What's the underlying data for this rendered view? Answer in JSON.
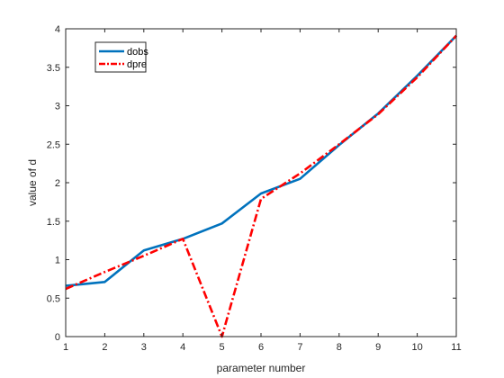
{
  "chart_data": {
    "type": "line",
    "title": "",
    "xlabel": "parameter number",
    "ylabel": "value of d",
    "xlim": [
      1,
      11
    ],
    "ylim": [
      0,
      4
    ],
    "xticks": [
      1,
      2,
      3,
      4,
      5,
      6,
      7,
      8,
      9,
      10,
      11
    ],
    "yticks": [
      0,
      0.5,
      1,
      1.5,
      2,
      2.5,
      3,
      3.5,
      4
    ],
    "ytick_labels": [
      "0",
      "0.5",
      "1",
      "1.5",
      "2",
      "2.5",
      "3",
      "3.5",
      "4"
    ],
    "grid": false,
    "legend_position": "top-left",
    "x": [
      1,
      2,
      3,
      4,
      5,
      6,
      7,
      8,
      9,
      10,
      11
    ],
    "series": [
      {
        "name": "dobs",
        "color": "#0072BD",
        "style": "solid",
        "values": [
          0.66,
          0.71,
          1.12,
          1.27,
          1.47,
          1.86,
          2.05,
          2.49,
          2.9,
          3.39,
          3.91
        ]
      },
      {
        "name": "dpre",
        "color": "#FF0000",
        "style": "dash-dot",
        "values": [
          0.62,
          0.84,
          1.05,
          1.27,
          0.0,
          1.79,
          2.12,
          2.5,
          2.89,
          3.37,
          3.91
        ]
      }
    ]
  }
}
